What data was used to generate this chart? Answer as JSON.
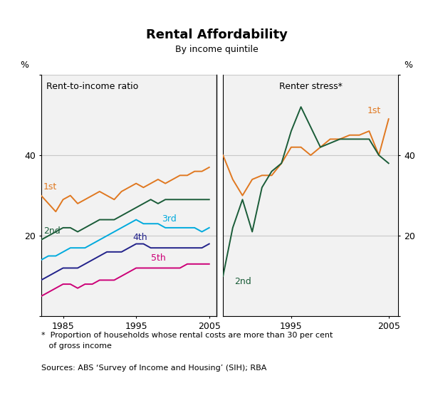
{
  "title": "Rental Affordability",
  "subtitle": "By income quintile",
  "left_panel_title": "Rent-to-income ratio",
  "right_panel_title": "Renter stress*",
  "ylabel": "%",
  "footnote_line1": "*  Proportion of households whose rental costs are more than 30 per cent",
  "footnote_line2": "   of gross income",
  "sources": "Sources: ABS ‘Survey of Income and Housing’ (SIH); RBA",
  "ylim": [
    0,
    60
  ],
  "yticks": [
    0,
    20,
    40,
    60
  ],
  "background_color": "#ffffff",
  "panel_bg": "#f2f2f2",
  "left_years": [
    1982,
    1983,
    1984,
    1985,
    1986,
    1987,
    1988,
    1989,
    1990,
    1991,
    1992,
    1993,
    1994,
    1995,
    1996,
    1997,
    1998,
    1999,
    2000,
    2001,
    2002,
    2003,
    2004,
    2005
  ],
  "left_1st": [
    30,
    28,
    26,
    29,
    30,
    28,
    29,
    30,
    31,
    30,
    29,
    31,
    32,
    33,
    32,
    33,
    34,
    33,
    34,
    35,
    35,
    36,
    36,
    37
  ],
  "left_2nd": [
    19,
    20,
    21,
    22,
    22,
    21,
    22,
    23,
    24,
    24,
    24,
    25,
    26,
    27,
    28,
    29,
    28,
    29,
    29,
    29,
    29,
    29,
    29,
    29
  ],
  "left_3rd": [
    14,
    15,
    15,
    16,
    17,
    17,
    17,
    18,
    19,
    20,
    21,
    22,
    23,
    24,
    23,
    23,
    23,
    22,
    22,
    22,
    22,
    22,
    21,
    22
  ],
  "left_4th": [
    9,
    10,
    11,
    12,
    12,
    12,
    13,
    14,
    15,
    16,
    16,
    16,
    17,
    18,
    18,
    17,
    17,
    17,
    17,
    17,
    17,
    17,
    17,
    18
  ],
  "left_5th": [
    5,
    6,
    7,
    8,
    8,
    7,
    8,
    8,
    9,
    9,
    9,
    10,
    11,
    12,
    12,
    12,
    12,
    12,
    12,
    12,
    13,
    13,
    13,
    13
  ],
  "right_years": [
    1988,
    1989,
    1990,
    1991,
    1992,
    1993,
    1994,
    1995,
    1996,
    1997,
    1998,
    1999,
    2000,
    2001,
    2002,
    2003,
    2004,
    2005
  ],
  "right_1st": [
    40,
    34,
    30,
    34,
    35,
    35,
    38,
    42,
    42,
    40,
    42,
    44,
    44,
    45,
    45,
    46,
    40,
    49
  ],
  "right_2nd": [
    10,
    22,
    29,
    21,
    32,
    36,
    38,
    46,
    52,
    47,
    42,
    43,
    44,
    44,
    44,
    44,
    40,
    38
  ],
  "color_1st": "#e07820",
  "color_2nd": "#1a5c38",
  "color_3rd": "#00aadd",
  "color_4th": "#22228a",
  "color_5th": "#cc0077",
  "grid_color": "#c8c8c8"
}
